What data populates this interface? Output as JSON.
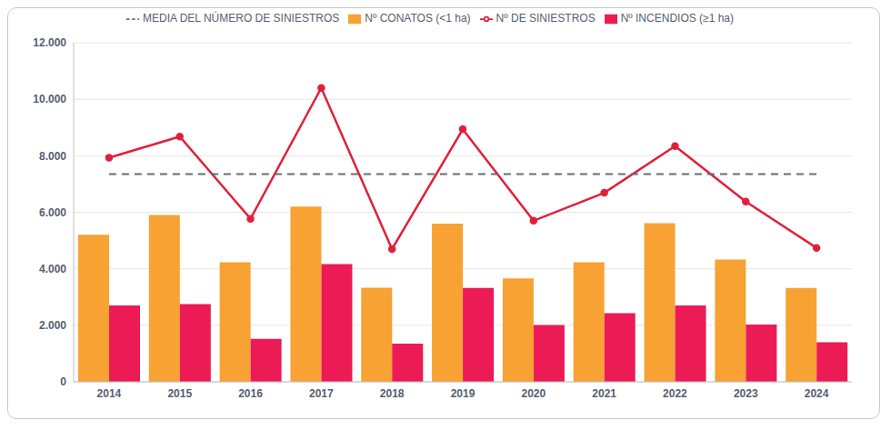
{
  "chart_data": {
    "type": "bar",
    "categories": [
      "2014",
      "2015",
      "2016",
      "2017",
      "2018",
      "2019",
      "2020",
      "2021",
      "2022",
      "2023",
      "2024"
    ],
    "series": [
      {
        "name": "Nº CONATOS (<1 ha)",
        "type": "bar",
        "color": "#F7A233",
        "values": [
          5200,
          5900,
          4230,
          6200,
          3330,
          5600,
          3660,
          4230,
          5610,
          4330,
          3320
        ]
      },
      {
        "name": "Nº INCENDIOS (≥1 ha)",
        "type": "bar",
        "color": "#EC1B55",
        "values": [
          2700,
          2750,
          1520,
          4170,
          1350,
          3320,
          2010,
          2430,
          2700,
          2030,
          1400
        ]
      },
      {
        "name": "Nº DE SINIESTROS",
        "type": "line",
        "color": "#E0203A",
        "marker": "circle",
        "line_style": "solid",
        "values": [
          7930,
          8680,
          5770,
          10400,
          4700,
          8940,
          5700,
          6690,
          8340,
          6380,
          4740
        ]
      },
      {
        "name": "MEDIA DEL NÚMERO DE SINIESTROS",
        "type": "line",
        "color": "#5E6E7A",
        "marker": "none",
        "line_style": "dashed",
        "values": [
          7350,
          7350,
          7350,
          7350,
          7350,
          7350,
          7350,
          7350,
          7350,
          7350,
          7350
        ]
      }
    ],
    "ylim": [
      0,
      12000
    ],
    "yticks": [
      0,
      {
        "value": 2000,
        "label": "2.000"
      },
      {
        "value": 4000,
        "label": "4.000"
      },
      {
        "value": 6000,
        "label": "6.000"
      },
      {
        "value": 8000,
        "label": "8.000"
      },
      {
        "value": 10000,
        "label": "10.000"
      },
      {
        "value": 12000,
        "label": "12.000"
      }
    ],
    "grid": true,
    "legend": "top"
  }
}
